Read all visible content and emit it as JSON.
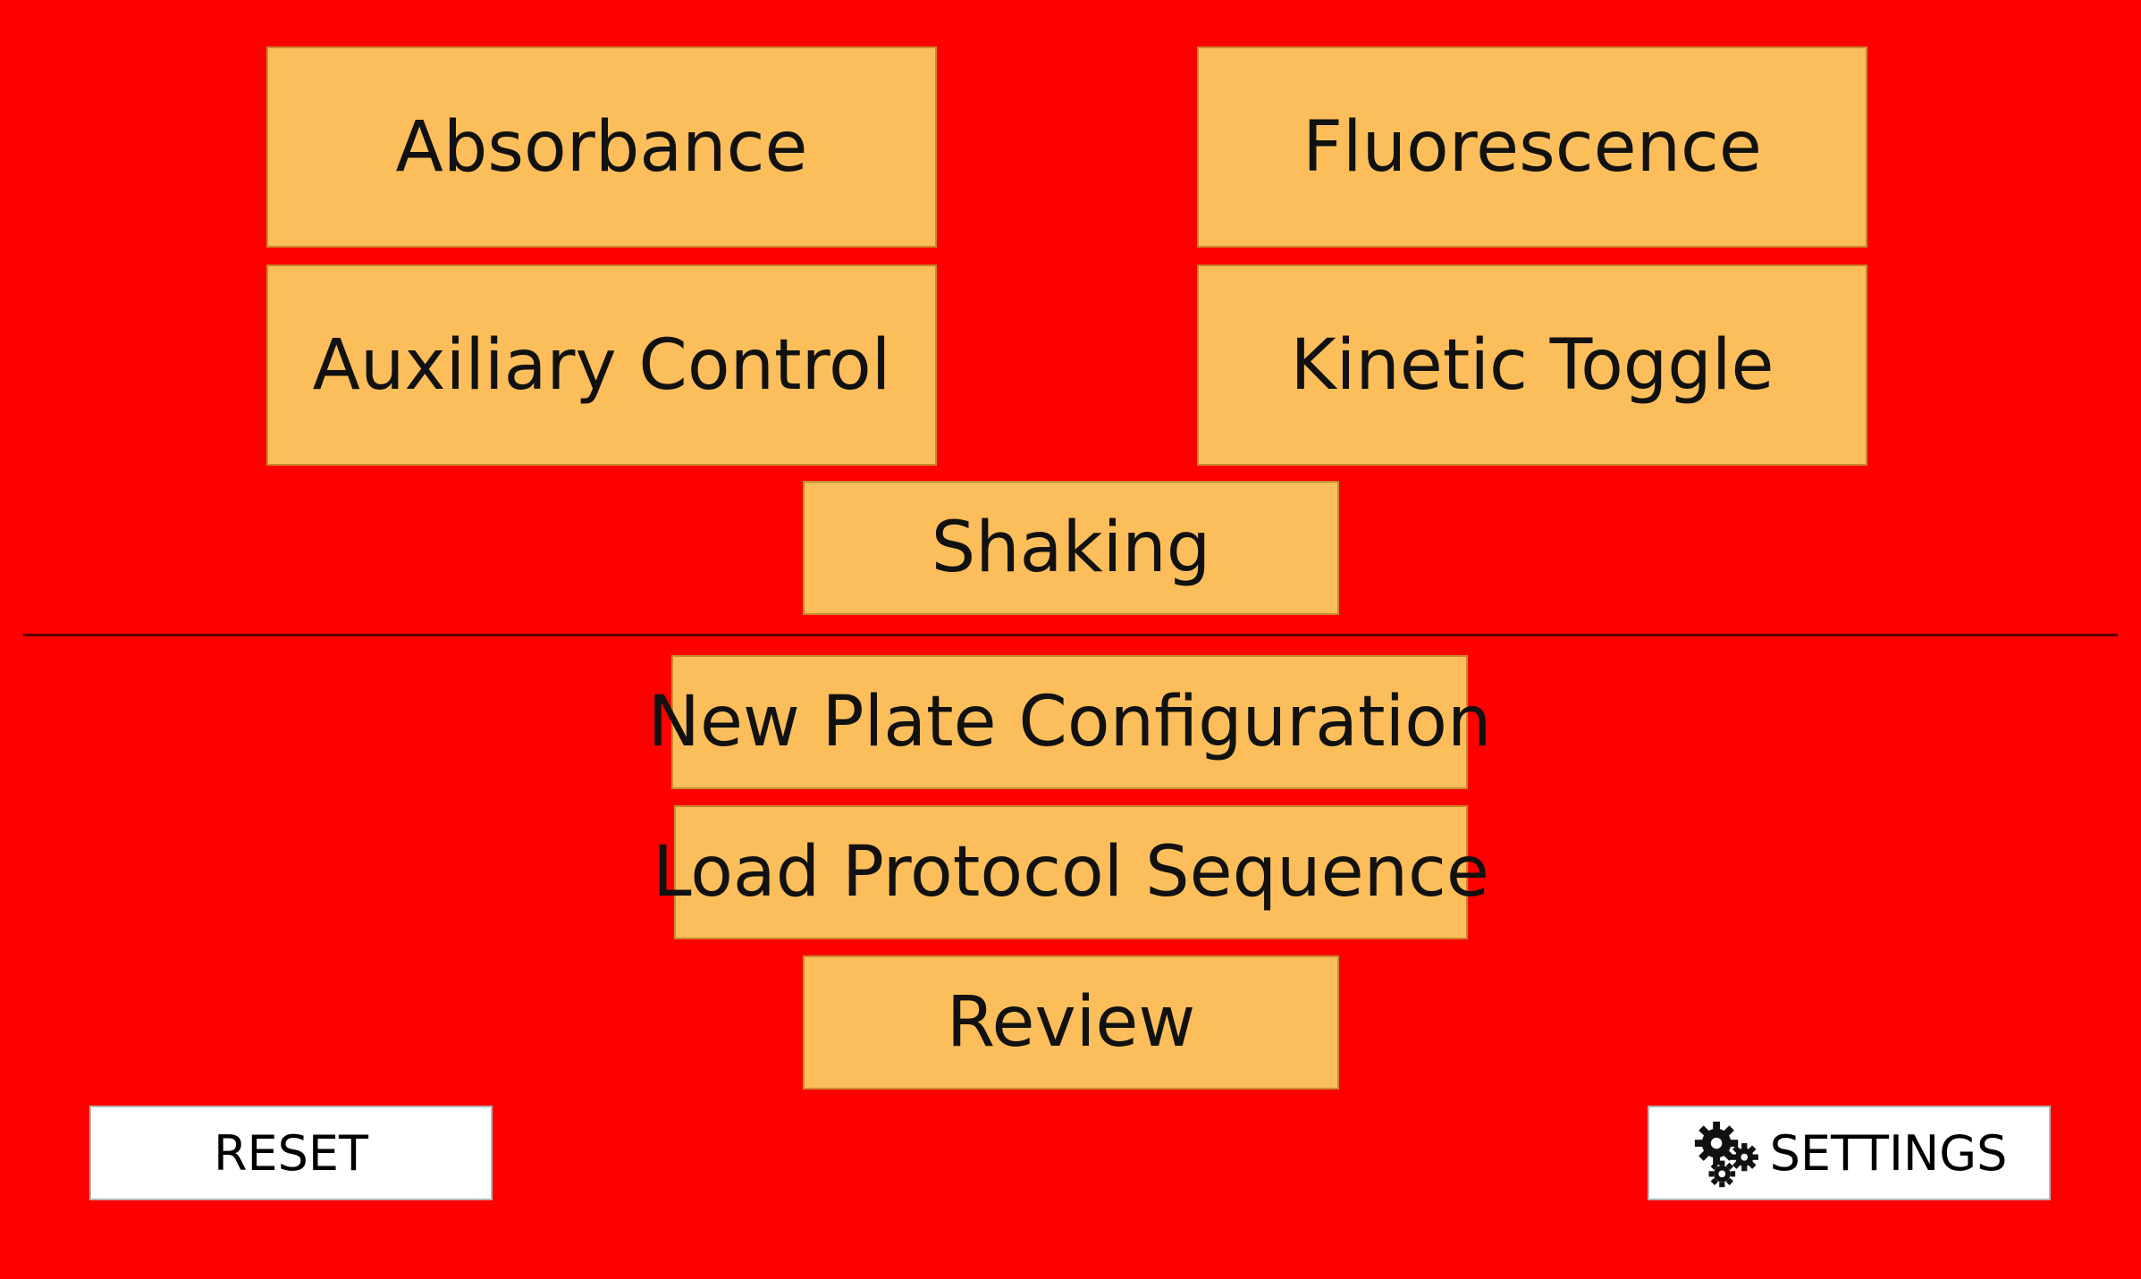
{
  "buttons": {
    "absorbance": "Absorbance",
    "fluorescence": "Fluorescence",
    "auxiliary_control": "Auxiliary Control",
    "kinetic_toggle": "Kinetic Toggle",
    "shaking": "Shaking",
    "new_plate_configuration": "New Plate Configuration",
    "load_protocol_sequence": "Load Protocol Sequence",
    "review": "Review",
    "reset": "RESET",
    "settings": "SETTINGS"
  },
  "icons": {
    "settings": "gears-icon"
  },
  "colors": {
    "background": "#ff0000",
    "button_fill": "#fcbe5a",
    "utility_button_fill": "#ffffff",
    "text": "#111111"
  }
}
